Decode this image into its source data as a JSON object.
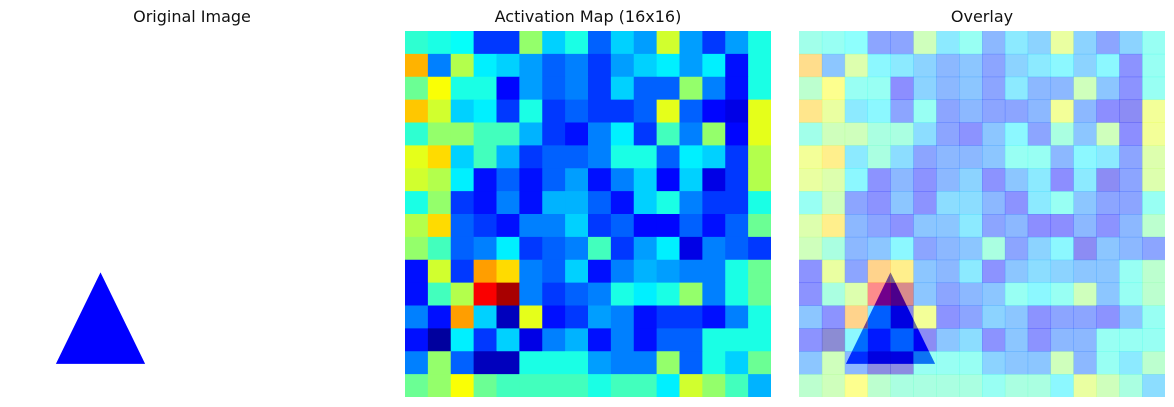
{
  "chart_data": [
    {
      "type": "image",
      "title": "Original Image",
      "background": "#ffffff",
      "shape": {
        "kind": "triangle",
        "color": "#0000ff",
        "vertices": [
          [
            4,
            10.55
          ],
          [
            5.95,
            14.55
          ],
          [
            2.05,
            14.55
          ]
        ]
      },
      "axes": "off"
    },
    {
      "type": "heatmap",
      "title": "Activation Map (16x16)",
      "colormap": "jet",
      "vmin": 0,
      "vmax": 1,
      "axes": "off",
      "values": [
        [
          0.42,
          0.4,
          0.38,
          0.18,
          0.18,
          0.52,
          0.33,
          0.4,
          0.22,
          0.33,
          0.28,
          0.58,
          0.28,
          0.18,
          0.28,
          0.4
        ],
        [
          0.7,
          0.25,
          0.55,
          0.36,
          0.33,
          0.28,
          0.22,
          0.25,
          0.18,
          0.28,
          0.33,
          0.36,
          0.28,
          0.36,
          0.14,
          0.4
        ],
        [
          0.48,
          0.62,
          0.4,
          0.4,
          0.13,
          0.28,
          0.22,
          0.25,
          0.18,
          0.33,
          0.22,
          0.22,
          0.52,
          0.25,
          0.14,
          0.4
        ],
        [
          0.68,
          0.58,
          0.33,
          0.36,
          0.18,
          0.4,
          0.18,
          0.22,
          0.18,
          0.18,
          0.22,
          0.6,
          0.22,
          0.13,
          0.1,
          0.6
        ],
        [
          0.42,
          0.52,
          0.52,
          0.44,
          0.44,
          0.3,
          0.18,
          0.14,
          0.25,
          0.36,
          0.18,
          0.44,
          0.25,
          0.52,
          0.13,
          0.6
        ],
        [
          0.6,
          0.66,
          0.33,
          0.44,
          0.3,
          0.18,
          0.22,
          0.22,
          0.25,
          0.4,
          0.4,
          0.22,
          0.36,
          0.33,
          0.18,
          0.55
        ],
        [
          0.58,
          0.55,
          0.36,
          0.14,
          0.22,
          0.14,
          0.22,
          0.28,
          0.14,
          0.25,
          0.33,
          0.13,
          0.33,
          0.1,
          0.18,
          0.55
        ],
        [
          0.4,
          0.52,
          0.18,
          0.14,
          0.25,
          0.14,
          0.3,
          0.3,
          0.22,
          0.14,
          0.33,
          0.4,
          0.25,
          0.18,
          0.18,
          0.4
        ],
        [
          0.55,
          0.66,
          0.22,
          0.18,
          0.14,
          0.25,
          0.25,
          0.33,
          0.18,
          0.22,
          0.13,
          0.13,
          0.22,
          0.14,
          0.22,
          0.48
        ],
        [
          0.52,
          0.44,
          0.22,
          0.25,
          0.36,
          0.18,
          0.22,
          0.25,
          0.44,
          0.18,
          0.28,
          0.36,
          0.1,
          0.25,
          0.22,
          0.18
        ],
        [
          0.14,
          0.58,
          0.18,
          0.72,
          0.66,
          0.25,
          0.22,
          0.33,
          0.14,
          0.25,
          0.3,
          0.28,
          0.25,
          0.25,
          0.4,
          0.48
        ],
        [
          0.14,
          0.44,
          0.55,
          0.88,
          0.96,
          0.25,
          0.18,
          0.22,
          0.25,
          0.4,
          0.36,
          0.4,
          0.52,
          0.25,
          0.4,
          0.48
        ],
        [
          0.25,
          0.14,
          0.72,
          0.33,
          0.06,
          0.6,
          0.14,
          0.18,
          0.28,
          0.25,
          0.14,
          0.18,
          0.18,
          0.14,
          0.25,
          0.4
        ],
        [
          0.14,
          0.03,
          0.36,
          0.18,
          0.33,
          0.1,
          0.25,
          0.3,
          0.14,
          0.25,
          0.14,
          0.22,
          0.22,
          0.4,
          0.4,
          0.4
        ],
        [
          0.25,
          0.52,
          0.22,
          0.06,
          0.06,
          0.4,
          0.4,
          0.4,
          0.28,
          0.25,
          0.25,
          0.52,
          0.22,
          0.4,
          0.33,
          0.48
        ],
        [
          0.48,
          0.52,
          0.62,
          0.48,
          0.44,
          0.44,
          0.44,
          0.44,
          0.4,
          0.44,
          0.44,
          0.36,
          0.58,
          0.52,
          0.44,
          0.3
        ]
      ]
    },
    {
      "type": "overlay",
      "title": "Overlay",
      "base": "Original Image",
      "heatmap": "Activation Map (16x16)",
      "heatmap_alpha": 0.45,
      "axes": "off"
    }
  ]
}
